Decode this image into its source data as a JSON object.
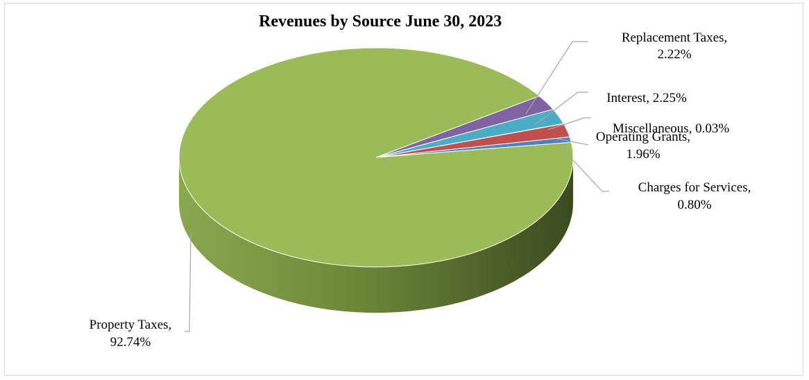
{
  "chart_data": {
    "type": "pie",
    "title": "Revenues by Source June 30, 2023",
    "slices": [
      {
        "label": "Property Taxes,",
        "value_label": "92.74%",
        "value": 92.74,
        "color": "#9bbb59",
        "side": "#6f8a35"
      },
      {
        "label": "Replacement Taxes,",
        "value_label": "2.22%",
        "value": 2.22,
        "color": "#8064a2",
        "side": "#5e4a7a"
      },
      {
        "label": "Interest,",
        "value_label": "2.25%",
        "value": 2.25,
        "color": "#4bacc6",
        "side": "#338396"
      },
      {
        "label": "Miscellaneous,",
        "value_label": "0.03%",
        "value": 0.03,
        "color": "#2f5597",
        "side": "#1f3a69"
      },
      {
        "label": "Operating Grants,",
        "value_label": "1.96%",
        "value": 1.96,
        "color": "#c0504d",
        "side": "#8e3a38"
      },
      {
        "label": "Charges for Services,",
        "value_label": "0.80%",
        "value": 0.8,
        "color": "#4f81bd",
        "side": "#365f8e"
      }
    ],
    "legend": "none",
    "style": "3d-pie"
  }
}
